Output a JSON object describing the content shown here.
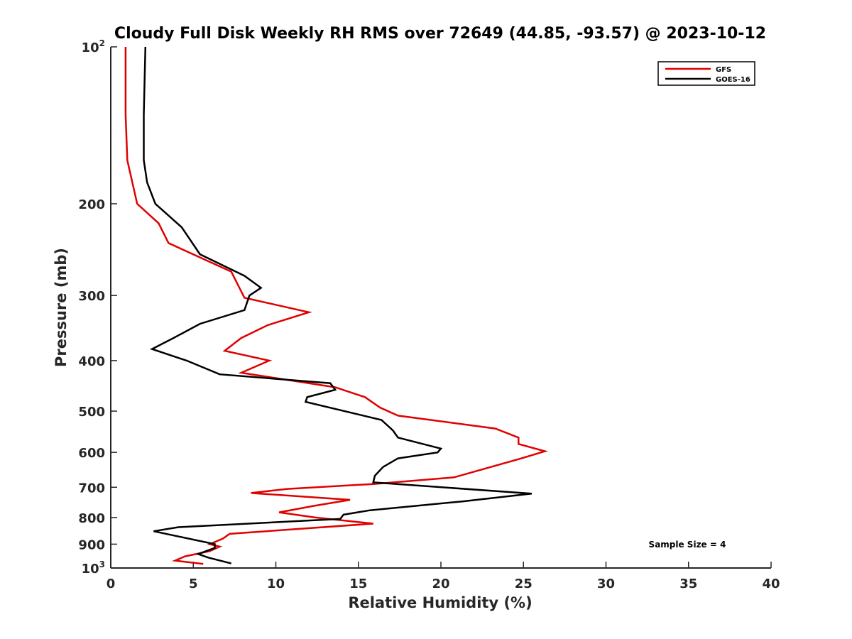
{
  "chart_data": {
    "type": "line",
    "title": "Cloudy Full Disk Weekly RH RMS over 72649 (44.85, -93.57) @ 2023-10-12",
    "xlabel": "Relative Humidity (%)",
    "ylabel": "Pressure (mb)",
    "xlim": [
      0,
      40
    ],
    "ylim": [
      100,
      1000
    ],
    "yscale": "log",
    "y_reversed": true,
    "grid": false,
    "legend_position": "top-right",
    "x_ticks": [
      0,
      5,
      10,
      15,
      20,
      25,
      30,
      35,
      40
    ],
    "y_ticks": [
      100,
      200,
      300,
      400,
      500,
      600,
      700,
      800,
      900,
      1000
    ],
    "y_tick_labels": [
      {
        "value": 100,
        "base": "10",
        "exp": "2"
      },
      {
        "value": 200,
        "base": "200",
        "exp": ""
      },
      {
        "value": 300,
        "base": "300",
        "exp": ""
      },
      {
        "value": 400,
        "base": "400",
        "exp": ""
      },
      {
        "value": 500,
        "base": "500",
        "exp": ""
      },
      {
        "value": 600,
        "base": "600",
        "exp": ""
      },
      {
        "value": 700,
        "base": "700",
        "exp": ""
      },
      {
        "value": 800,
        "base": "800",
        "exp": ""
      },
      {
        "value": 900,
        "base": "900",
        "exp": ""
      },
      {
        "value": 1000,
        "base": "10",
        "exp": "3"
      }
    ],
    "annotation": "Sample Size = 4",
    "series": [
      {
        "name": "GFS",
        "color": "#e00000",
        "points": [
          [
            0.9,
            100
          ],
          [
            0.9,
            135
          ],
          [
            1.0,
            165
          ],
          [
            1.6,
            200
          ],
          [
            2.9,
            218
          ],
          [
            3.5,
            238
          ],
          [
            7.3,
            270
          ],
          [
            8.1,
            303
          ],
          [
            12.0,
            323
          ],
          [
            9.5,
            342
          ],
          [
            7.9,
            362
          ],
          [
            6.9,
            383
          ],
          [
            9.6,
            400
          ],
          [
            7.9,
            422
          ],
          [
            13.6,
            450
          ],
          [
            15.4,
            470
          ],
          [
            16.3,
            492
          ],
          [
            17.4,
            510
          ],
          [
            23.3,
            540
          ],
          [
            24.7,
            562
          ],
          [
            24.7,
            578
          ],
          [
            26.3,
            597
          ],
          [
            24.8,
            617
          ],
          [
            22.8,
            643
          ],
          [
            20.8,
            670
          ],
          [
            15.9,
            690
          ],
          [
            10.7,
            705
          ],
          [
            8.5,
            718
          ],
          [
            14.5,
            740
          ],
          [
            12.3,
            760
          ],
          [
            10.2,
            782
          ],
          [
            12.4,
            800
          ],
          [
            15.9,
            822
          ],
          [
            7.2,
            860
          ],
          [
            6.8,
            878
          ],
          [
            6.0,
            900
          ],
          [
            6.6,
            910
          ],
          [
            6.0,
            928
          ],
          [
            4.5,
            950
          ],
          [
            3.9,
            968
          ],
          [
            5.6,
            982
          ]
        ]
      },
      {
        "name": "GOES-16",
        "color": "#000000",
        "points": [
          [
            2.1,
            100
          ],
          [
            2.0,
            135
          ],
          [
            2.0,
            165
          ],
          [
            2.2,
            182
          ],
          [
            2.7,
            200
          ],
          [
            4.3,
            222
          ],
          [
            5.4,
            250
          ],
          [
            8.1,
            275
          ],
          [
            9.1,
            290
          ],
          [
            8.4,
            300
          ],
          [
            8.1,
            320
          ],
          [
            5.4,
            340
          ],
          [
            3.8,
            362
          ],
          [
            2.5,
            380
          ],
          [
            4.6,
            400
          ],
          [
            6.6,
            425
          ],
          [
            13.3,
            442
          ],
          [
            13.6,
            455
          ],
          [
            11.9,
            470
          ],
          [
            11.8,
            480
          ],
          [
            16.4,
            520
          ],
          [
            17.1,
            545
          ],
          [
            17.4,
            562
          ],
          [
            20.0,
            590
          ],
          [
            19.8,
            600
          ],
          [
            17.4,
            616
          ],
          [
            16.5,
            640
          ],
          [
            16.0,
            665
          ],
          [
            15.9,
            685
          ],
          [
            25.5,
            720
          ],
          [
            21.3,
            745
          ],
          [
            15.7,
            775
          ],
          [
            14.1,
            790
          ],
          [
            13.9,
            805
          ],
          [
            4.1,
            835
          ],
          [
            2.6,
            850
          ],
          [
            6.3,
            900
          ],
          [
            6.3,
            915
          ],
          [
            5.3,
            940
          ],
          [
            5.9,
            955
          ],
          [
            7.3,
            980
          ]
        ]
      }
    ]
  }
}
